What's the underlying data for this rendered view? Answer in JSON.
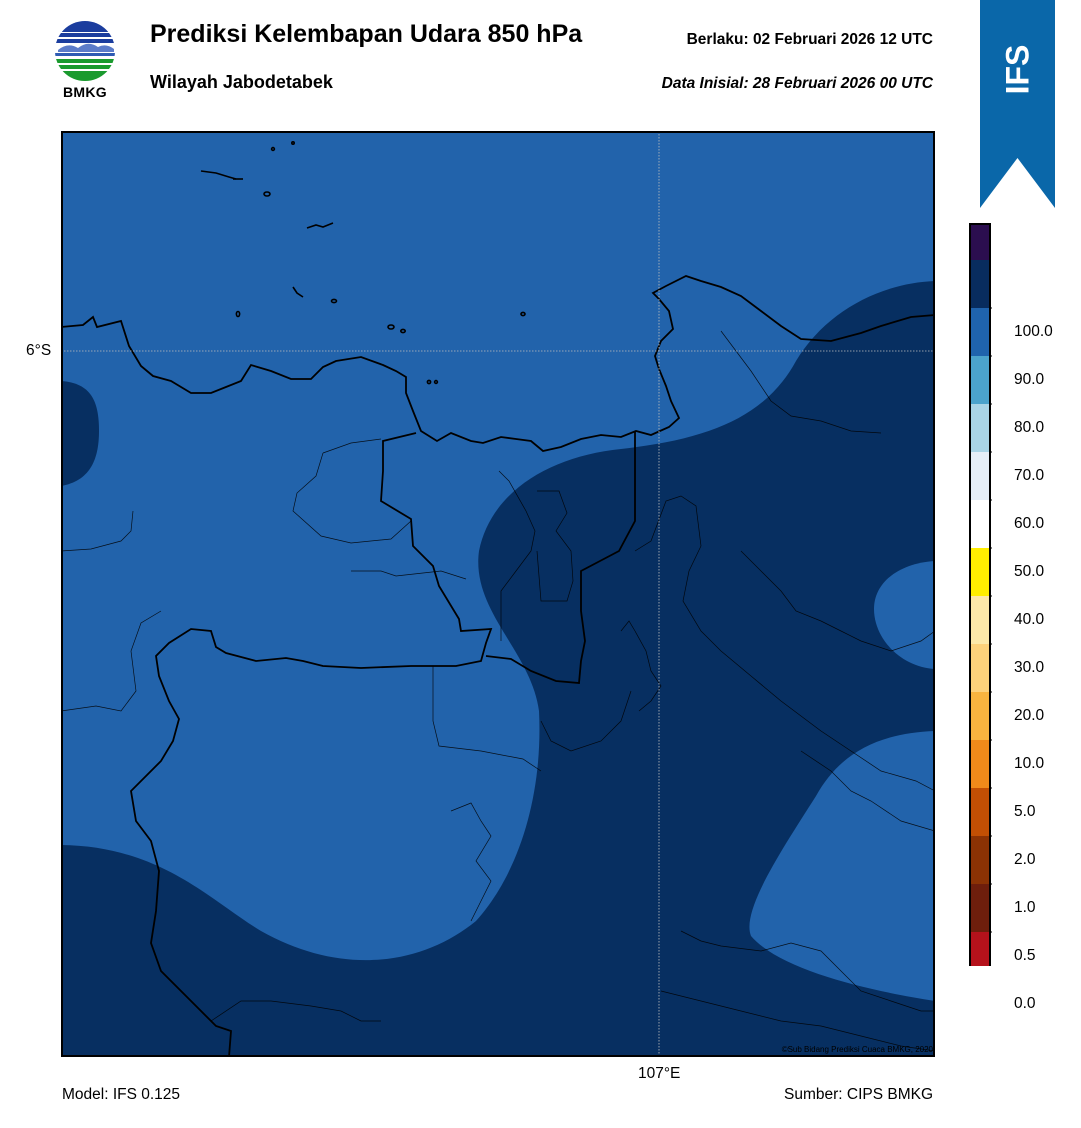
{
  "header": {
    "logo_text": "BMKG",
    "title": "Prediksi Kelembapan Udara 850 hPa",
    "subtitle": "Wilayah Jabodetabek",
    "valid": "Berlaku:  02 Februari 2026 12 UTC",
    "initial": "Data Inisial:  28 Februari 2026 00 UTC",
    "ribbon_text": "IFS"
  },
  "map": {
    "lat_label": "6°S",
    "lon_label": "107°E",
    "copyright": "©Sub Bidang Prediksi Cuaca BMKG, 2020"
  },
  "footer": {
    "model": "Model: IFS 0.125",
    "source": "Sumber: CIPS BMKG"
  },
  "colorbar": {
    "ticks": [
      "0.0",
      "0.5",
      "1.0",
      "2.0",
      "5.0",
      "10.0",
      "20.0",
      "30.0",
      "40.0",
      "50.0",
      "60.0",
      "70.0",
      "80.0",
      "90.0",
      "100.0"
    ],
    "colors": [
      "#e8392b",
      "#b5121b",
      "#6e1e0c",
      "#8b3204",
      "#c24f04",
      "#f08a1a",
      "#f9b43f",
      "#fdd17b",
      "#fde8a8",
      "#ffee00",
      "#ffffff",
      "#e6eef7",
      "#a9d4e6",
      "#4ba3cc",
      "#1f63ad",
      "#082c5e",
      "#2b0e4f"
    ]
  },
  "colors": {
    "humid_80_90": "#2263ab",
    "humid_90_100": "#072f61",
    "ribbon": "#0a67a9"
  }
}
